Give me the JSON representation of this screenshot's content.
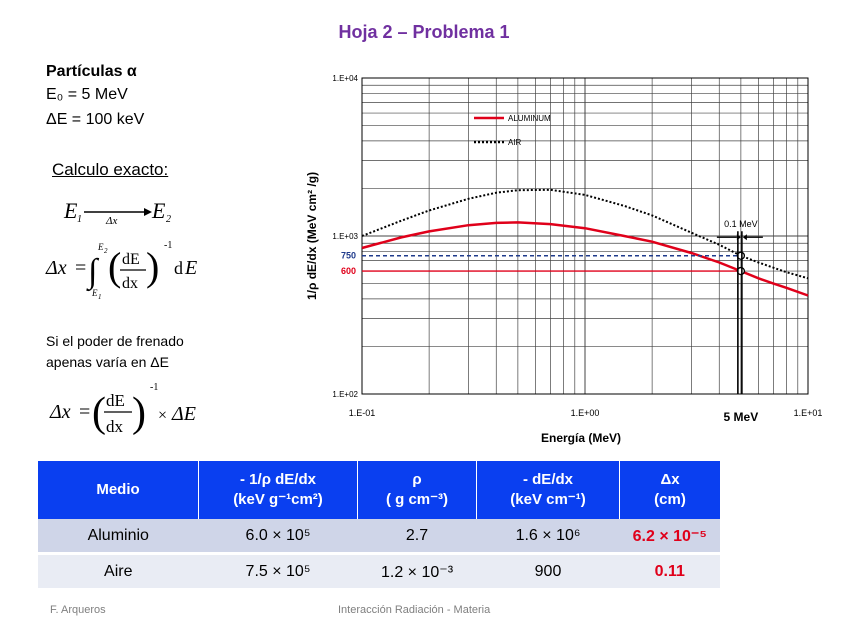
{
  "title": "Hoja 2 – Problema 1",
  "left": {
    "heading": "Partículas α",
    "e0": "E₀ = 5 MeV",
    "de": "ΔE = 100 keV",
    "calc_label": "Calculo exacto:",
    "note_line1": "Si el poder de frenado",
    "note_line2": "apenas varía en ΔE"
  },
  "chart_data": {
    "type": "line",
    "xscale": "log",
    "yscale": "log",
    "xlim": [
      0.1,
      10
    ],
    "ylim": [
      100,
      10000
    ],
    "x_ticks": [
      "1.E-01",
      "1.E+00",
      "1.E+01"
    ],
    "y_ticks": [
      "1.E+02",
      "1.E+03",
      "1.E+04"
    ],
    "xlabel": "Energía (MeV)",
    "ylabel": "1/ρ dE/dx (MeV cm² /g)",
    "grid": true,
    "legend": "upper-center",
    "series": [
      {
        "name": "ALUMINUM",
        "color": "#e0001a",
        "style": "solid",
        "x": [
          0.1,
          0.15,
          0.2,
          0.3,
          0.4,
          0.5,
          0.7,
          1.0,
          1.5,
          2.0,
          3.0,
          4.0,
          5.0,
          6.0,
          7.0,
          8.0,
          10.0
        ],
        "y": [
          840,
          980,
          1070,
          1170,
          1210,
          1220,
          1190,
          1120,
          1000,
          920,
          780,
          680,
          600,
          540,
          500,
          470,
          420
        ]
      },
      {
        "name": "AIR",
        "color": "#000000",
        "style": "dotted",
        "x": [
          0.1,
          0.15,
          0.2,
          0.3,
          0.4,
          0.5,
          0.7,
          1.0,
          1.5,
          2.0,
          3.0,
          4.0,
          5.0,
          6.0,
          7.0,
          8.0,
          10.0
        ],
        "y": [
          1000,
          1250,
          1450,
          1720,
          1880,
          1950,
          1960,
          1820,
          1550,
          1350,
          1050,
          880,
          750,
          680,
          630,
          590,
          540
        ]
      }
    ],
    "annotations": {
      "ref_lines": [
        {
          "label": "750",
          "value": 750,
          "color": "#1f3b8c"
        },
        {
          "label": "600",
          "value": 600,
          "color": "#e0001a"
        }
      ],
      "delta_label": "0.1 MeV",
      "energy_marker": "5 MeV",
      "energy_value": 5
    }
  },
  "table": {
    "headers": [
      {
        "l1": "Medio",
        "l2": ""
      },
      {
        "l1": "- 1/ρ dE/dx",
        "l2": "(keV g⁻¹cm²)"
      },
      {
        "l1": "ρ",
        "l2": "( g cm⁻³)"
      },
      {
        "l1": "- dE/dx",
        "l2": "(keV cm⁻¹)"
      },
      {
        "l1": "Δx",
        "l2": "(cm)"
      }
    ],
    "rows": [
      [
        "Aluminio",
        "6.0 × 10⁵",
        "2.7",
        "1.6 × 10⁶",
        "6.2 × 10⁻⁵"
      ],
      [
        "Aire",
        "7.5 × 10⁵",
        "1.2 × 10⁻³",
        "900",
        "0.11"
      ]
    ]
  },
  "footer": {
    "author": "F. Arqueros",
    "course": "Interacción Radiación - Materia"
  }
}
